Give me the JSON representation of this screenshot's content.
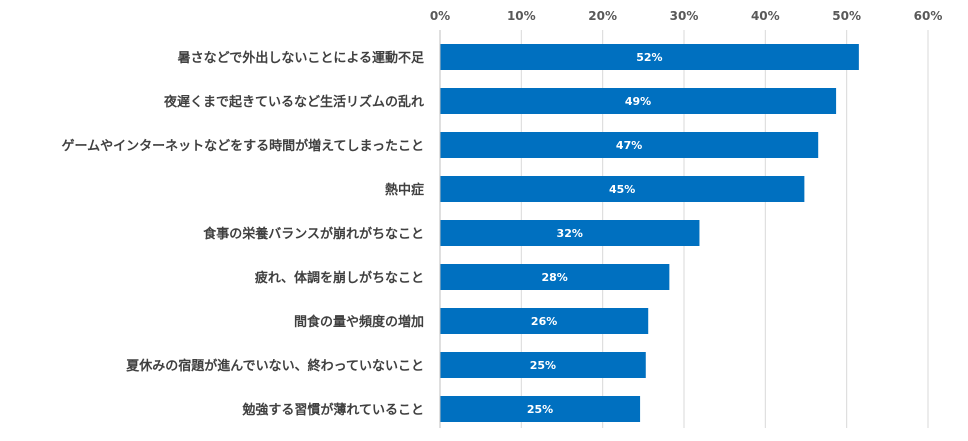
{
  "chart_data": {
    "type": "bar",
    "orientation": "horizontal",
    "categories": [
      "暑さなどで外出しないことによる運動不足",
      "夜遅くまで起きているなど生活リズムの乱れ",
      "ゲームやインターネットなどをする時間が増えてしまったこと",
      "熱中症",
      "食事の栄養バランスが崩れがちなこと",
      "疲れ、体調を崩しがちなこと",
      "間食の量や頻度の増加",
      "夏休みの宿題が進んでいない、終わっていないこと",
      "勉強する習慣が薄れていること"
    ],
    "values": [
      51.5,
      48.7,
      46.5,
      44.8,
      31.9,
      28.2,
      25.6,
      25.3,
      24.6
    ],
    "data_labels": [
      "52%",
      "49%",
      "47%",
      "45%",
      "32%",
      "28%",
      "26%",
      "25%",
      "25%"
    ],
    "x_ticks": [
      0,
      10,
      20,
      30,
      40,
      50,
      60
    ],
    "x_tick_labels": [
      "0%",
      "10%",
      "20%",
      "30%",
      "40%",
      "50%",
      "60%"
    ],
    "xlim": [
      0,
      60
    ],
    "x_axis_position": "top",
    "grid": true,
    "bar_color": "#0070c0"
  }
}
